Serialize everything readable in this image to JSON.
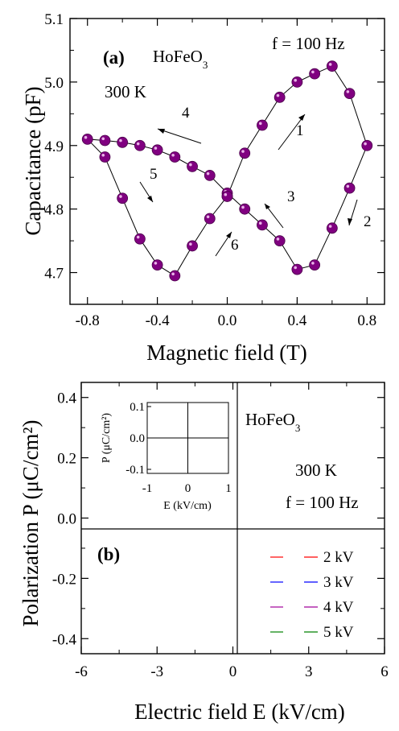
{
  "colors": {
    "marker": "#800080",
    "line_2kV": "#ff0000",
    "line_3kV": "#0000ff",
    "line_4kV": "#a0009a",
    "line_5kV": "#008000"
  },
  "chart_data": [
    {
      "type": "line",
      "panel": "(a)",
      "xlabel": "Magnetic field (T)",
      "ylabel": "Capacitance (pF)",
      "xlim": [
        -0.9,
        0.9
      ],
      "ylim": [
        4.65,
        5.1
      ],
      "xticks": [
        "-0.8",
        "-0.4",
        "0.0",
        "0.4",
        "0.8"
      ],
      "yticks": [
        "4.7",
        "4.8",
        "4.9",
        "5.0",
        "5.1"
      ],
      "annotations": {
        "compound": "HoFeO",
        "compound_sub": "3",
        "frequency": "f = 100 Hz",
        "temperature": "300 K",
        "arrow_labels": [
          "1",
          "2",
          "3",
          "4",
          "5",
          "6"
        ]
      },
      "series": [
        {
          "points": [
            [
              0.0,
              4.82
            ],
            [
              0.1,
              4.888
            ],
            [
              0.2,
              4.932
            ],
            [
              0.3,
              4.976
            ],
            [
              0.4,
              5.0
            ],
            [
              0.5,
              5.013
            ],
            [
              0.6,
              5.025
            ],
            [
              0.7,
              4.982
            ],
            [
              0.8,
              4.9
            ],
            [
              0.7,
              4.833
            ],
            [
              0.6,
              4.77
            ],
            [
              0.5,
              4.712
            ],
            [
              0.4,
              4.705
            ],
            [
              0.3,
              4.75
            ],
            [
              0.2,
              4.775
            ],
            [
              0.1,
              4.8
            ],
            [
              0.0,
              4.825
            ],
            [
              -0.1,
              4.853
            ],
            [
              -0.2,
              4.867
            ],
            [
              -0.3,
              4.882
            ],
            [
              -0.4,
              4.893
            ],
            [
              -0.5,
              4.9
            ],
            [
              -0.6,
              4.905
            ],
            [
              -0.7,
              4.908
            ],
            [
              -0.8,
              4.91
            ],
            [
              -0.7,
              4.882
            ],
            [
              -0.6,
              4.817
            ],
            [
              -0.5,
              4.753
            ],
            [
              -0.4,
              4.712
            ],
            [
              -0.3,
              4.695
            ],
            [
              -0.2,
              4.742
            ],
            [
              -0.1,
              4.785
            ],
            [
              0.0,
              4.82
            ]
          ]
        }
      ]
    },
    {
      "type": "line",
      "panel": "(b)",
      "xlabel": "Electric field E (kV/cm)",
      "ylabel": "Polarization P (μC/cm²)",
      "xlim": [
        -6,
        6
      ],
      "ylim": [
        -0.45,
        0.45
      ],
      "xticks": [
        "-6",
        "-3",
        "0",
        "3",
        "6"
      ],
      "yticks": [
        "-0.4",
        "-0.2",
        "0.0",
        "0.2",
        "0.4"
      ],
      "annotations": {
        "compound": "HoFeO",
        "compound_sub": "3",
        "temperature": "300 K",
        "frequency": "f = 100 Hz"
      },
      "legend": [
        "2 kV",
        "3 kV",
        "4 kV",
        "5 kV"
      ],
      "inset": {
        "xlabel": "E (kV/cm)",
        "ylabel": "P (μC/cm²)",
        "xticks": [
          "-1",
          "0",
          "1"
        ],
        "yticks": [
          "0.1",
          "0.0",
          "-0.1"
        ]
      }
    }
  ]
}
